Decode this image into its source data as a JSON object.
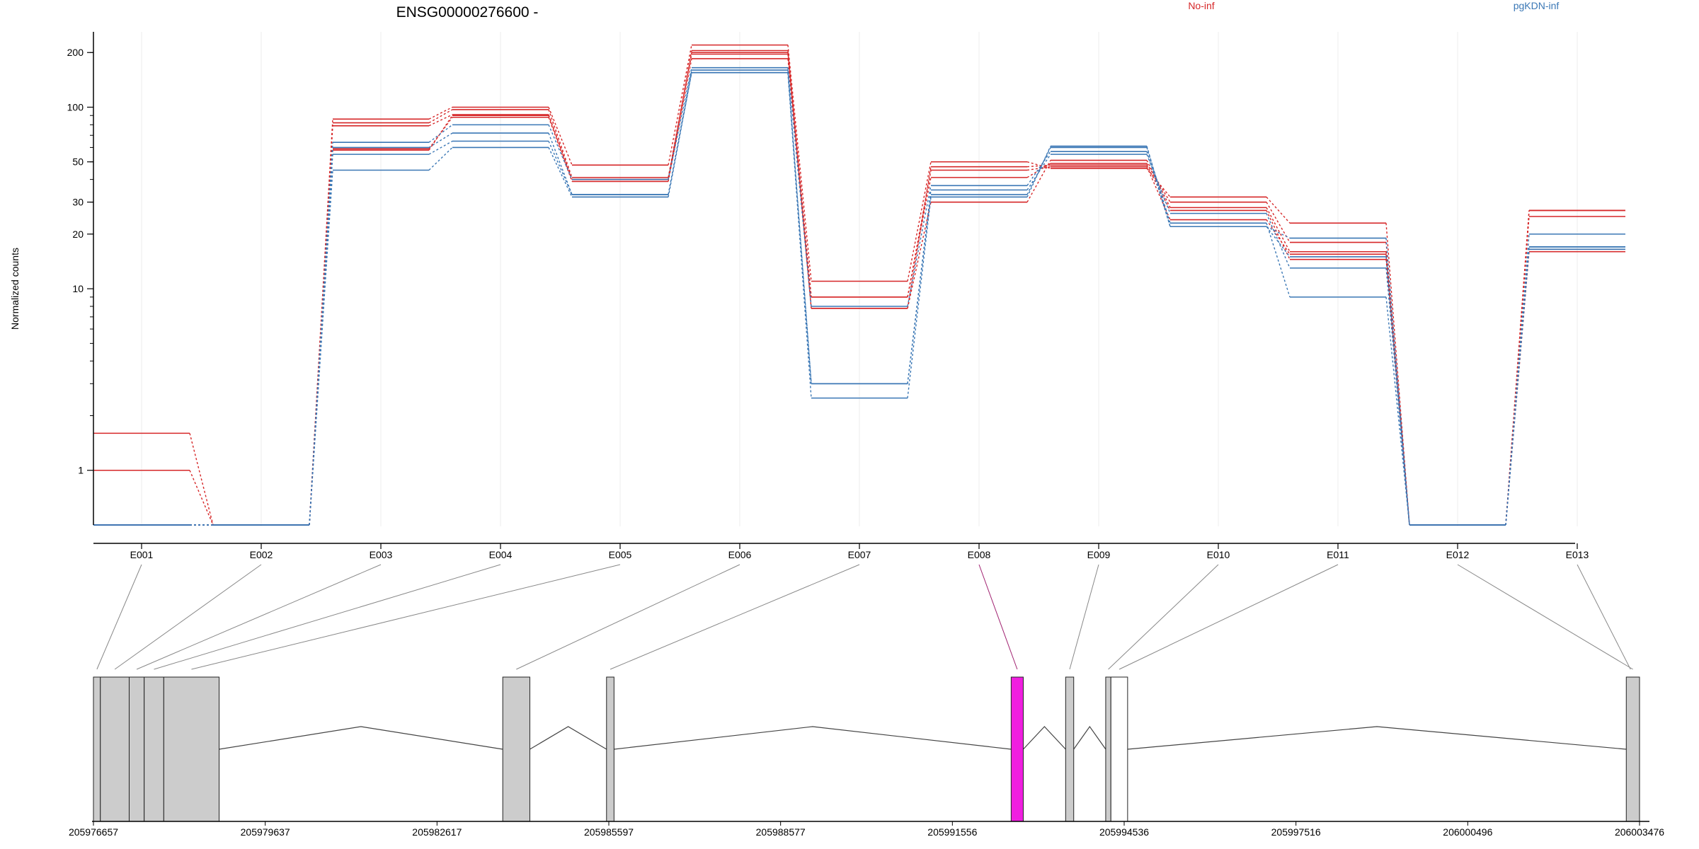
{
  "chart_data": [
    {
      "type": "line",
      "title": "ENSG00000276600 -",
      "ylabel": "Normalized counts",
      "xlabel": "",
      "y_scale": "log",
      "ylim": [
        0.5,
        260
      ],
      "yticks": [
        1,
        10,
        20,
        30,
        50,
        100,
        200
      ],
      "ytick_labels": [
        "1",
        "10",
        "20",
        "30",
        "50",
        "100",
        "200"
      ],
      "categories": [
        "E001",
        "E002",
        "E003",
        "E004",
        "E005",
        "E006",
        "E007",
        "E008",
        "E009",
        "E010",
        "E011",
        "E012",
        "E013"
      ],
      "legend": {
        "placement": "top-right",
        "entries": [
          {
            "label": "No-inf",
            "color": "#d62728"
          },
          {
            "label": "pgKDN-inf",
            "color": "#3a77b5"
          }
        ]
      },
      "grid": "vertical",
      "series_groups": [
        {
          "condition": "No-inf",
          "color": "#d62728",
          "series": [
            {
              "values": [
                1.6,
                0.5,
                86,
                100,
                48,
                220,
                11,
                50,
                46,
                32,
                23,
                0.5,
                27
              ]
            },
            {
              "values": [
                1.0,
                0.5,
                82,
                97,
                41,
                205,
                9,
                41,
                49,
                30,
                18,
                0.5,
                27
              ]
            },
            {
              "values": [
                0.5,
                0.5,
                79,
                91,
                40,
                200,
                7.8,
                30,
                51,
                28,
                16,
                0.5,
                25
              ]
            },
            {
              "values": [
                0.5,
                0.5,
                58,
                90,
                40,
                196,
                7.8,
                47,
                48,
                27,
                14.5,
                0.5,
                16
              ]
            },
            {
              "values": [
                0.5,
                0.5,
                59,
                88,
                39,
                185,
                9,
                45,
                47,
                24,
                15.5,
                0.5,
                16.5
              ]
            }
          ]
        },
        {
          "condition": "pgKDN-inf",
          "color": "#3a77b5",
          "series": [
            {
              "values": [
                0.5,
                0.5,
                64,
                80,
                40,
                165,
                8,
                37,
                57,
                22,
                19,
                0.5,
                20
              ]
            },
            {
              "values": [
                0.5,
                0.5,
                60,
                72,
                33,
                160,
                3.0,
                35,
                55,
                26,
                13,
                0.5,
                17
              ]
            },
            {
              "values": [
                0.5,
                0.5,
                55,
                65,
                33,
                155,
                3.0,
                33,
                60,
                23,
                9,
                0.5,
                17
              ]
            },
            {
              "values": [
                0.5,
                0.5,
                45,
                60,
                32,
                155,
                2.5,
                32,
                61,
                22,
                15,
                0.5,
                16.5
              ]
            }
          ]
        }
      ]
    },
    {
      "type": "diagram",
      "title": "",
      "x_range": [
        205976657,
        206003476
      ],
      "xtick_labels": [
        "205976657",
        "205979637",
        "205982617",
        "205985597",
        "205988577",
        "205991556",
        "205994536",
        "205997516",
        "206000496",
        "206003476"
      ],
      "exons": [
        {
          "id": "E001",
          "start": 205976657,
          "end": 205976777
        },
        {
          "id": "E002",
          "start": 205976777,
          "end": 205977277
        },
        {
          "id": "E003",
          "start": 205977277,
          "end": 205977537
        },
        {
          "id": "E004",
          "start": 205977537,
          "end": 205977877
        },
        {
          "id": "E005",
          "start": 205977877,
          "end": 205978837
        },
        {
          "id": "E006",
          "start": 205983757,
          "end": 205984227
        },
        {
          "id": "E007",
          "start": 205985557,
          "end": 205985687
        },
        {
          "id": "E008",
          "start": 205992576,
          "end": 205992786,
          "highlight": true
        },
        {
          "id": "E009",
          "start": 205993521,
          "end": 205993661
        },
        {
          "id": "E010",
          "start": 205994216,
          "end": 205994306
        },
        {
          "id": "E011",
          "start": 205994306,
          "end": 205994596,
          "open": true
        },
        {
          "id": "E012",
          "start": 206003246,
          "end": 206003476
        }
      ],
      "highlight_color": "#f01ee0",
      "exon_color": "#cccccc"
    }
  ]
}
